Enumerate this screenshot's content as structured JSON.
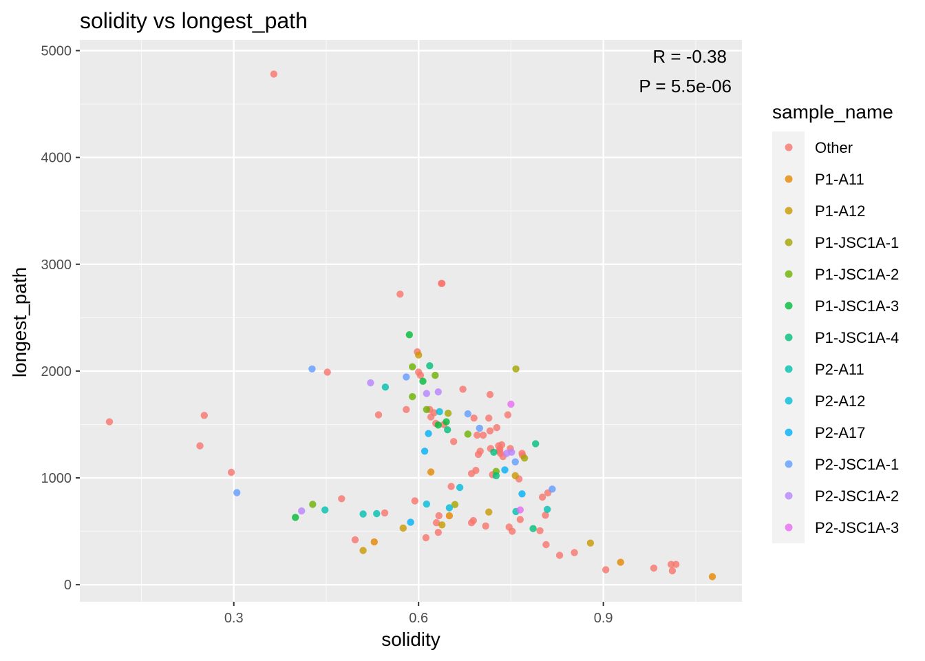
{
  "chart_data": {
    "type": "scatter",
    "title": "solidity vs longest_path",
    "xlabel": "solidity",
    "ylabel": "longest_path",
    "xlim": [
      0.05,
      1.125
    ],
    "ylim": [
      -160,
      5100
    ],
    "x_ticks": [
      0.3,
      0.6,
      0.9
    ],
    "x_tick_labels": [
      "0.3",
      "0.6",
      "0.9"
    ],
    "y_ticks": [
      0,
      1000,
      2000,
      3000,
      4000,
      5000
    ],
    "y_tick_labels": [
      "0",
      "1000",
      "2000",
      "3000",
      "4000",
      "5000"
    ],
    "grid": true,
    "legend_position": "right",
    "legend_title": "sample_name",
    "annotations": [
      "R = -0.38",
      "P = 5.5e-06"
    ],
    "series": [
      {
        "name": "Other",
        "color": "#F8766D",
        "points": [
          [
            0.098,
            1525
          ],
          [
            0.245,
            1300
          ],
          [
            0.252,
            1585
          ],
          [
            0.296,
            1052
          ],
          [
            0.365,
            4780
          ],
          [
            0.452,
            1990
          ],
          [
            0.475,
            805
          ],
          [
            0.497,
            420
          ],
          [
            0.535,
            1590
          ],
          [
            0.545,
            672
          ],
          [
            0.57,
            2720
          ],
          [
            0.58,
            1640
          ],
          [
            0.594,
            785
          ],
          [
            0.598,
            2180
          ],
          [
            0.6,
            1990
          ],
          [
            0.603,
            1960
          ],
          [
            0.612,
            440
          ],
          [
            0.618,
            1640
          ],
          [
            0.62,
            1570
          ],
          [
            0.625,
            1610
          ],
          [
            0.628,
            1510
          ],
          [
            0.629,
            580
          ],
          [
            0.632,
            490
          ],
          [
            0.633,
            645
          ],
          [
            0.637,
            2820
          ],
          [
            0.638,
            2820
          ],
          [
            0.641,
            1500
          ],
          [
            0.653,
            920
          ],
          [
            0.657,
            1340
          ],
          [
            0.672,
            1830
          ],
          [
            0.686,
            1040
          ],
          [
            0.686,
            580
          ],
          [
            0.689,
            600
          ],
          [
            0.69,
            1560
          ],
          [
            0.693,
            1070
          ],
          [
            0.695,
            1400
          ],
          [
            0.697,
            1220
          ],
          [
            0.7,
            1250
          ],
          [
            0.705,
            1400
          ],
          [
            0.709,
            550
          ],
          [
            0.714,
            1560
          ],
          [
            0.716,
            1780
          ],
          [
            0.716,
            1440
          ],
          [
            0.717,
            1275
          ],
          [
            0.72,
            1030
          ],
          [
            0.727,
            1470
          ],
          [
            0.73,
            1300
          ],
          [
            0.731,
            1250
          ],
          [
            0.732,
            1270
          ],
          [
            0.733,
            1230
          ],
          [
            0.735,
            1310
          ],
          [
            0.737,
            1200
          ],
          [
            0.745,
            1590
          ],
          [
            0.747,
            540
          ],
          [
            0.749,
            1275
          ],
          [
            0.752,
            500
          ],
          [
            0.763,
            990
          ],
          [
            0.765,
            610
          ],
          [
            0.768,
            1230
          ],
          [
            0.769,
            1210
          ],
          [
            0.797,
            505
          ],
          [
            0.801,
            820
          ],
          [
            0.806,
            650
          ],
          [
            0.807,
            375
          ],
          [
            0.81,
            860
          ],
          [
            0.829,
            275
          ],
          [
            0.853,
            300
          ],
          [
            0.904,
            140
          ],
          [
            0.982,
            155
          ],
          [
            1.01,
            190
          ],
          [
            1.012,
            130
          ],
          [
            1.018,
            190
          ]
        ]
      },
      {
        "name": "P1-A11",
        "color": "#E58700",
        "points": [
          [
            0.528,
            400
          ],
          [
            0.62,
            1055
          ],
          [
            0.65,
            645
          ],
          [
            0.928,
            210
          ],
          [
            1.077,
            75
          ]
        ]
      },
      {
        "name": "P1-A12",
        "color": "#C99800",
        "points": [
          [
            0.51,
            320
          ],
          [
            0.575,
            530
          ],
          [
            0.6,
            2150
          ],
          [
            0.638,
            560
          ],
          [
            0.714,
            680
          ],
          [
            0.757,
            1020
          ],
          [
            0.879,
            390
          ]
        ]
      },
      {
        "name": "P1-JSC1A-1",
        "color": "#A3A500",
        "points": [
          [
            0.648,
            1605
          ],
          [
            0.659,
            750
          ],
          [
            0.758,
            2020
          ],
          [
            0.772,
            1185
          ]
        ]
      },
      {
        "name": "P1-JSC1A-2",
        "color": "#6BB100",
        "points": [
          [
            0.428,
            752
          ],
          [
            0.59,
            2040
          ],
          [
            0.59,
            1760
          ],
          [
            0.613,
            1640
          ],
          [
            0.627,
            1960
          ],
          [
            0.68,
            1410
          ],
          [
            0.726,
            1060
          ]
        ]
      },
      {
        "name": "P1-JSC1A-3",
        "color": "#00BA38",
        "points": [
          [
            0.4,
            630
          ],
          [
            0.585,
            2340
          ],
          [
            0.607,
            1905
          ],
          [
            0.632,
            1495
          ],
          [
            0.645,
            1525
          ]
        ]
      },
      {
        "name": "P1-JSC1A-4",
        "color": "#00BF7D",
        "points": [
          [
            0.618,
            2050
          ],
          [
            0.647,
            1450
          ],
          [
            0.722,
            1240
          ],
          [
            0.726,
            1020
          ],
          [
            0.786,
            525
          ],
          [
            0.79,
            1320
          ]
        ]
      },
      {
        "name": "P2-A11",
        "color": "#00C0AF",
        "points": [
          [
            0.448,
            700
          ],
          [
            0.51,
            662
          ],
          [
            0.532,
            665
          ],
          [
            0.546,
            1850
          ],
          [
            0.758,
            685
          ],
          [
            0.809,
            705
          ]
        ]
      },
      {
        "name": "P2-A12",
        "color": "#00BCD8",
        "points": [
          [
            0.613,
            755
          ],
          [
            0.634,
            1620
          ],
          [
            0.65,
            720
          ],
          [
            0.667,
            910
          ]
        ]
      },
      {
        "name": "P2-A17",
        "color": "#00B0F6",
        "points": [
          [
            0.587,
            585
          ],
          [
            0.61,
            1250
          ],
          [
            0.616,
            1415
          ],
          [
            0.74,
            1075
          ],
          [
            0.768,
            850
          ]
        ]
      },
      {
        "name": "P2-JSC1A-1",
        "color": "#619CFF",
        "points": [
          [
            0.305,
            862
          ],
          [
            0.427,
            2020
          ],
          [
            0.58,
            1945
          ],
          [
            0.68,
            1600
          ],
          [
            0.699,
            1465
          ],
          [
            0.757,
            1150
          ],
          [
            0.817,
            895
          ]
        ]
      },
      {
        "name": "P2-JSC1A-2",
        "color": "#B983FF",
        "points": [
          [
            0.41,
            690
          ],
          [
            0.522,
            1890
          ],
          [
            0.613,
            1790
          ],
          [
            0.632,
            1805
          ],
          [
            0.743,
            1230
          ],
          [
            0.751,
            1240
          ]
        ]
      },
      {
        "name": "P2-JSC1A-3",
        "color": "#E76BF3",
        "points": [
          [
            0.75,
            1690
          ],
          [
            0.765,
            700
          ]
        ]
      }
    ]
  }
}
